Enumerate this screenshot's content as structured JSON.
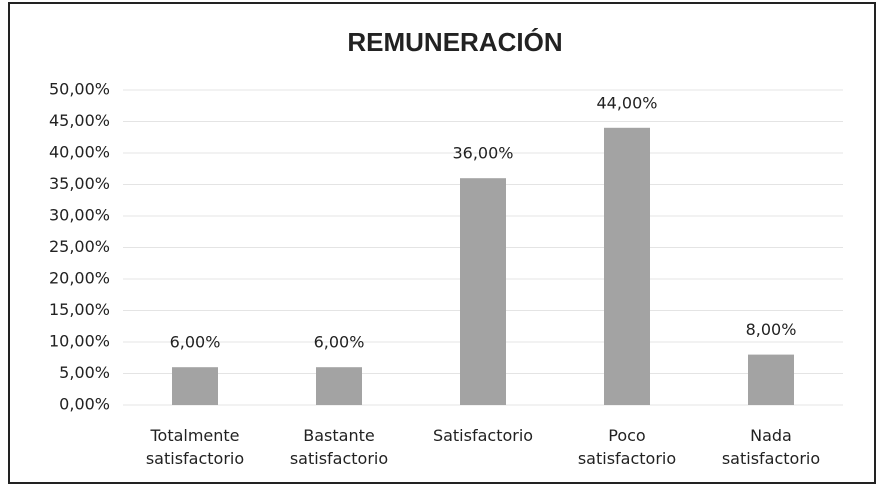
{
  "chart_data": {
    "type": "bar",
    "title": "REMUNERACIÓN",
    "categories": [
      "Totalmente satisfactorio",
      "Bastante satisfactorio",
      "Satisfactorio",
      "Poco satisfactorio",
      "Nada satisfactorio"
    ],
    "values": [
      6,
      6,
      36,
      44,
      8
    ],
    "value_labels": [
      "6,00%",
      "6,00%",
      "36,00%",
      "44,00%",
      "8,00%"
    ],
    "color": "#a3a3a3",
    "ylim": [
      0,
      50
    ],
    "yticks": [
      {
        "value": 0,
        "label": "0,00%"
      },
      {
        "value": 5,
        "label": "5,00%"
      },
      {
        "value": 10,
        "label": "10,00%"
      },
      {
        "value": 15,
        "label": "15,00%"
      },
      {
        "value": 20,
        "label": "20,00%"
      },
      {
        "value": 25,
        "label": "25,00%"
      },
      {
        "value": 30,
        "label": "30,00%"
      },
      {
        "value": 35,
        "label": "35,00%"
      },
      {
        "value": 40,
        "label": "40,00%"
      },
      {
        "value": 45,
        "label": "45,00%"
      },
      {
        "value": 50,
        "label": "50,00%"
      }
    ],
    "grid": true
  }
}
